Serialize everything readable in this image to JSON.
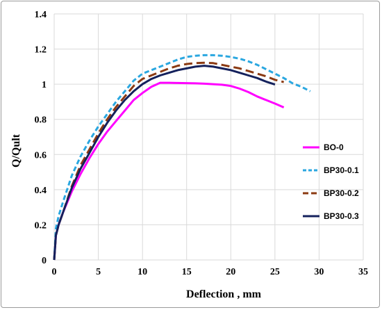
{
  "chart_data": {
    "type": "line",
    "title": "",
    "xlabel": "Deflection , mm",
    "ylabel": "Q/Qult",
    "xlim": [
      0,
      35
    ],
    "ylim": [
      0,
      1.4
    ],
    "x_ticks": [
      "0",
      "5",
      "10",
      "15",
      "20",
      "25",
      "30",
      "35"
    ],
    "y_ticks": [
      "0",
      "0.2",
      "0.4",
      "0.6",
      "0.8",
      "1",
      "1.2",
      "1.4"
    ],
    "grid": true,
    "legend_position": "right",
    "series": [
      {
        "name": "BO-0",
        "color": "#ff00ff",
        "dash": "solid",
        "x": [
          0,
          0.2,
          0.5,
          1,
          2,
          3,
          4,
          5,
          6,
          7,
          8,
          9,
          10,
          11,
          12,
          13,
          14,
          15,
          16,
          17,
          18,
          19,
          20,
          21,
          22,
          23,
          24,
          25,
          26
        ],
        "y": [
          0,
          0.14,
          0.2,
          0.27,
          0.39,
          0.49,
          0.58,
          0.66,
          0.73,
          0.79,
          0.85,
          0.91,
          0.95,
          0.985,
          1.008,
          1.008,
          1.007,
          1.006,
          1.005,
          1.003,
          1.0,
          0.997,
          0.99,
          0.975,
          0.955,
          0.93,
          0.91,
          0.89,
          0.868
        ]
      },
      {
        "name": "BP30-0.1",
        "color": "#2aa7e0",
        "dash": "dashed",
        "x": [
          0,
          0.2,
          0.5,
          1,
          2,
          3,
          4,
          5,
          6,
          7,
          8,
          9,
          10,
          11,
          12,
          13,
          14,
          15,
          16,
          17,
          18,
          19,
          20,
          21,
          22,
          23,
          24,
          25,
          26,
          27,
          28,
          29
        ],
        "y": [
          0,
          0.18,
          0.25,
          0.33,
          0.48,
          0.59,
          0.68,
          0.76,
          0.83,
          0.9,
          0.96,
          1.02,
          1.06,
          1.08,
          1.1,
          1.12,
          1.14,
          1.155,
          1.162,
          1.165,
          1.165,
          1.162,
          1.155,
          1.145,
          1.13,
          1.11,
          1.085,
          1.06,
          1.035,
          1.005,
          0.985,
          0.96
        ]
      },
      {
        "name": "BP30-0.2",
        "color": "#8b3a12",
        "dash": "dashed",
        "x": [
          0,
          0.2,
          0.5,
          1,
          2,
          3,
          4,
          5,
          6,
          7,
          8,
          9,
          10,
          11,
          12,
          13,
          14,
          15,
          16,
          17,
          18,
          19,
          20,
          21,
          22,
          23,
          24,
          25,
          26
        ],
        "y": [
          0,
          0.14,
          0.2,
          0.27,
          0.42,
          0.54,
          0.63,
          0.72,
          0.8,
          0.87,
          0.93,
          0.99,
          1.03,
          1.05,
          1.07,
          1.09,
          1.105,
          1.115,
          1.12,
          1.122,
          1.12,
          1.11,
          1.1,
          1.09,
          1.075,
          1.06,
          1.045,
          1.025,
          1.012
        ]
      },
      {
        "name": "BP30-0.3",
        "color": "#14215c",
        "dash": "solid",
        "x": [
          0,
          0.2,
          0.5,
          1,
          2,
          3,
          4,
          5,
          6,
          7,
          8,
          9,
          10,
          11,
          12,
          13,
          14,
          15,
          16,
          17,
          18,
          19,
          20,
          21,
          22,
          23,
          24,
          25
        ],
        "y": [
          0,
          0.14,
          0.2,
          0.27,
          0.41,
          0.52,
          0.61,
          0.7,
          0.78,
          0.85,
          0.91,
          0.96,
          1.0,
          1.03,
          1.05,
          1.065,
          1.08,
          1.09,
          1.1,
          1.105,
          1.1,
          1.09,
          1.08,
          1.065,
          1.05,
          1.035,
          1.015,
          0.998
        ]
      }
    ]
  }
}
